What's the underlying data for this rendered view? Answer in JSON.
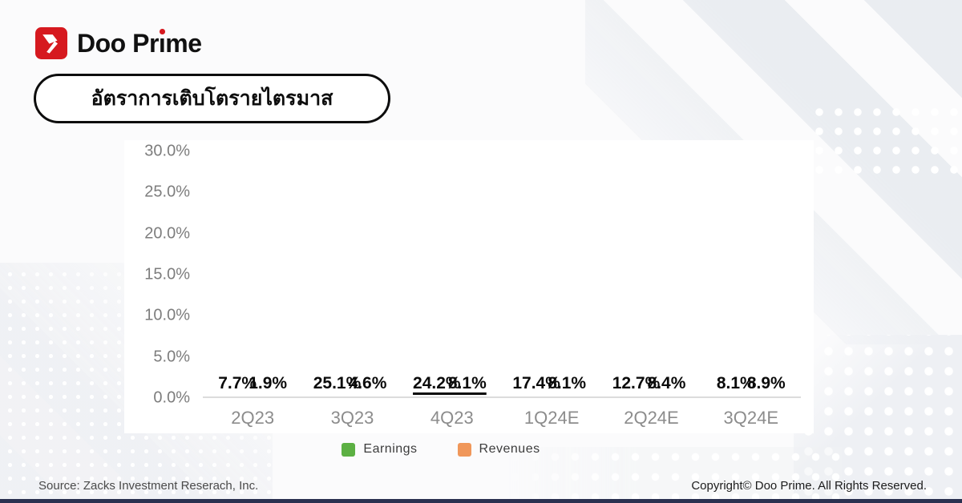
{
  "logo": {
    "brand": "Doo Prime",
    "brand_pre": "Doo Pr",
    "brand_i": "ı",
    "brand_post": "me"
  },
  "title": "อัตราการเติบโตรายไตรมาส",
  "chart_data": {
    "type": "bar",
    "title": "อัตราการเติบโตรายไตรมาส",
    "categories": [
      "2Q23",
      "3Q23",
      "4Q23",
      "1Q24E",
      "2Q24E",
      "3Q24E"
    ],
    "series": [
      {
        "name": "Earnings",
        "color": "#53a137",
        "values": [
          7.7,
          25.1,
          24.2,
          17.4,
          12.7,
          8.1
        ]
      },
      {
        "name": "Revenues",
        "color": "#e8822d",
        "values": [
          1.9,
          4.6,
          8.1,
          8.1,
          8.4,
          8.9
        ]
      }
    ],
    "value_labels": [
      [
        "7.7%",
        "1.9%"
      ],
      [
        "25.1%",
        "4.6%"
      ],
      [
        "24.2%",
        "8.1%"
      ],
      [
        "17.4%",
        "8.1%"
      ],
      [
        "12.7%",
        "8.4%"
      ],
      [
        "8.1%",
        "8.9%"
      ]
    ],
    "bar_styles": [
      "solid",
      "solid",
      "dots",
      "hatch",
      "hatch",
      "hatch"
    ],
    "underlined_groups": [
      2
    ],
    "y_ticks": [
      "30.0%",
      "25.0%",
      "20.0%",
      "15.0%",
      "10.0%",
      "5.0%",
      "0.0%"
    ],
    "ylim": [
      0,
      30
    ],
    "xlabel": "",
    "ylabel": "",
    "grid": false,
    "legend_position": "bottom",
    "legend": [
      {
        "label": "Earnings",
        "color": "#5cb043"
      },
      {
        "label": "Revenues",
        "color": "#f0975a"
      }
    ]
  },
  "footer": {
    "source": "Source: Zacks Investment Reserach, Inc.",
    "copyright": "Copyright© Doo Prime. All Rights Reserved."
  }
}
